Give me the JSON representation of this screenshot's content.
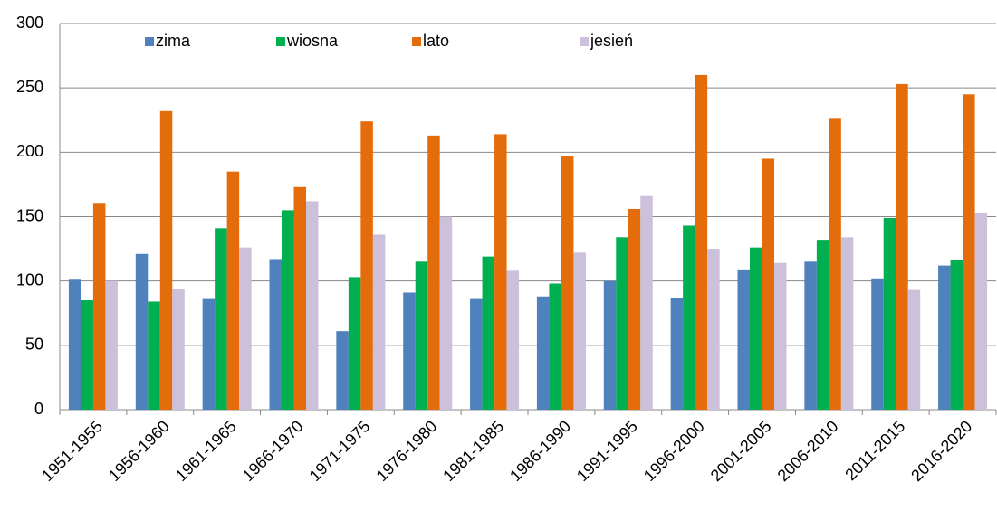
{
  "chart_data": {
    "type": "bar",
    "categories": [
      "1951-1955",
      "1956-1960",
      "1961-1965",
      "1966-1970",
      "1971-1975",
      "1976-1980",
      "1981-1985",
      "1986-1990",
      "1991-1995",
      "1996-2000",
      "2001-2005",
      "2006-2010",
      "2011-2015",
      "2016-2020"
    ],
    "series": [
      {
        "name": "zima",
        "color": "#4f81bd",
        "values": [
          101,
          121,
          86,
          117,
          61,
          91,
          86,
          88,
          100,
          87,
          109,
          115,
          102,
          112
        ]
      },
      {
        "name": "wiosna",
        "color": "#00b050",
        "values": [
          85,
          84,
          141,
          155,
          103,
          115,
          119,
          98,
          134,
          143,
          126,
          132,
          149,
          116
        ]
      },
      {
        "name": "lato",
        "color": "#e46c0a",
        "values": [
          160,
          232,
          185,
          173,
          224,
          213,
          214,
          197,
          156,
          260,
          195,
          226,
          253,
          245
        ]
      },
      {
        "name": "jesień",
        "color": "#ccc0da",
        "values": [
          100,
          94,
          126,
          162,
          136,
          150,
          108,
          122,
          166,
          125,
          114,
          134,
          93,
          153
        ]
      }
    ],
    "ylim": [
      0,
      300
    ],
    "yticks": [
      0,
      50,
      100,
      150,
      200,
      250,
      300
    ],
    "grid": true,
    "legend": "top"
  }
}
